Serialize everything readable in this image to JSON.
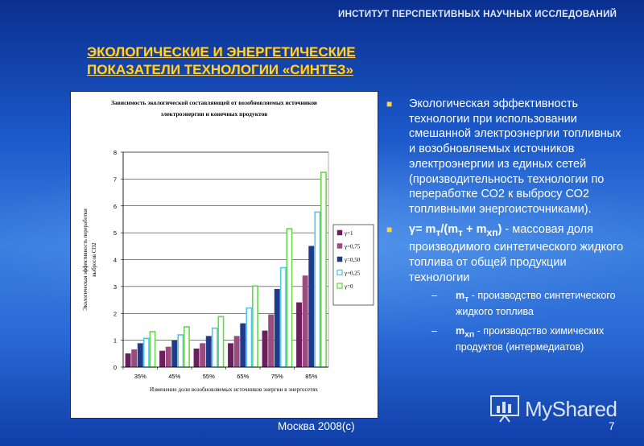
{
  "header": {
    "institute": "ИНСТИТУТ ПЕРСПЕКТИВНЫХ НАУЧНЫХ ИССЛЕДОВАНИЙ"
  },
  "slide": {
    "title_line1": "ЭКОЛОГИЧЕСКИЕ И ЭНЕРГЕТИЧЕСКИЕ",
    "title_line2": "ПОКАЗАТЕЛИ ТЕХНОЛОГИИ «СИНТЕЗ»"
  },
  "bullets": {
    "b1": "Экологическая эффективность технологии при использовании смешанной электроэнергии топливных и возобновляемых источников электроэнергии из единых сетей (производительность технологии по переработке СО2 к выбросу СО2 топливными энергоисточниками).",
    "b2_formula": "γ= m",
    "b2_sub_t1": "т",
    "b2_mid": "/(m",
    "b2_sub_t2": "т",
    "b2_plus": " + m",
    "b2_sub_xp": "хп",
    "b2_close": ")",
    "b2_text": " - массовая доля производимого синтетического жидкого топлива от общей продукции технологии",
    "sub1_sym": "m",
    "sub1_sub": "т",
    "sub1_text": " - производство синтетического жидкого топлива",
    "sub2_sym": "m",
    "sub2_sub": "хп",
    "sub2_text": " - производство химических продуктов (интермедиатов)",
    "dash": "–"
  },
  "footer": {
    "location": "Москва 2008(с)",
    "page": "7"
  },
  "watermark": {
    "text": "MyShared"
  },
  "chart_data": {
    "type": "bar",
    "title": "Зависимость экологической составляющей от возобновляемых источников электроэнергии и конечных продуктов",
    "xlabel": "Изменение доли возобновляемых источников энергии в энергосетях",
    "ylabel": "Экологическая эффективность переработки выбросов CO2",
    "categories": [
      "35%",
      "45%",
      "55%",
      "65%",
      "75%",
      "85%"
    ],
    "ylim": [
      0,
      8
    ],
    "yticks": [
      "0",
      "1",
      "2",
      "3",
      "4",
      "5",
      "6",
      "7",
      "8"
    ],
    "series": [
      {
        "name": "γ=1",
        "color": "#6b1f5e",
        "fill": "#7a1a6a",
        "values": [
          0.5,
          0.6,
          0.68,
          0.88,
          1.35,
          2.4
        ]
      },
      {
        "name": "γ=0,75",
        "color": "#9b4c7e",
        "fill": "#8a4a7a",
        "values": [
          0.65,
          0.75,
          0.88,
          1.15,
          1.95,
          3.4
        ]
      },
      {
        "name": "γ=0,50",
        "color": "#1f3a8a",
        "fill": "#283c8c",
        "values": [
          0.88,
          0.98,
          1.15,
          1.62,
          2.9,
          4.5
        ]
      },
      {
        "name": "γ=0,25",
        "color": "#4fc8e8",
        "fill": "#ffffff",
        "values": [
          1.07,
          1.2,
          1.45,
          2.2,
          3.7,
          5.77
        ]
      },
      {
        "name": "γ=0",
        "color": "#66d94a",
        "fill": "#ffffff",
        "values": [
          1.32,
          1.5,
          1.88,
          3.02,
          5.15,
          7.25
        ]
      }
    ]
  }
}
